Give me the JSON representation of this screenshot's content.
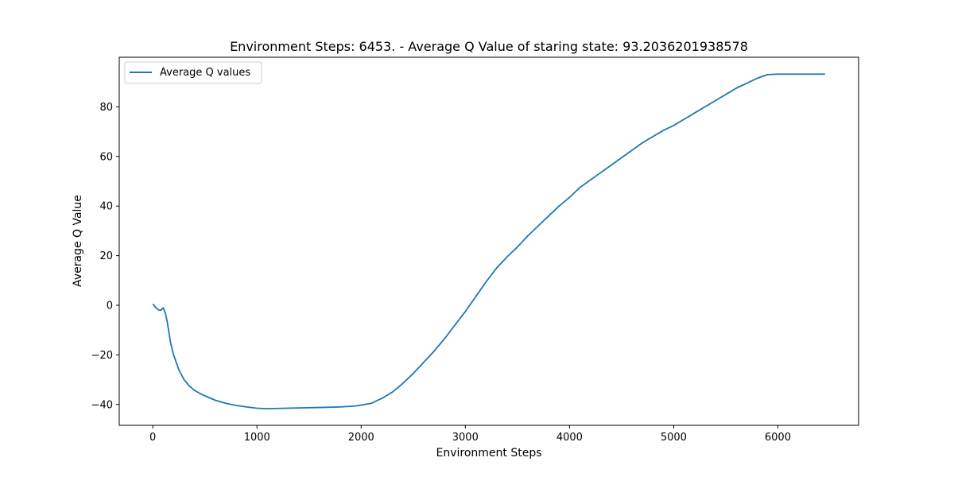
{
  "chart_data": {
    "type": "line",
    "title": "Environment Steps: 6453. - Average Q Value of staring state: 93.2036201938578",
    "xlabel": "Environment Steps",
    "ylabel": "Average Q Value",
    "xlim": [
      -322,
      6775
    ],
    "ylim": [
      -48.4,
      100.0
    ],
    "xticks": [
      0,
      1000,
      2000,
      3000,
      4000,
      5000,
      6000
    ],
    "yticks": [
      -40,
      -20,
      0,
      20,
      40,
      60,
      80
    ],
    "grid": false,
    "legend_position": "top-left",
    "series": [
      {
        "name": "Average Q values",
        "color": "#1f77b4",
        "x": [
          0,
          30,
          60,
          80,
          100,
          120,
          140,
          170,
          200,
          250,
          300,
          350,
          400,
          450,
          500,
          600,
          700,
          800,
          900,
          1000,
          1100,
          1200,
          1400,
          1600,
          1800,
          1950,
          2100,
          2200,
          2300,
          2400,
          2500,
          2600,
          2700,
          2800,
          2900,
          3000,
          3100,
          3200,
          3300,
          3400,
          3500,
          3600,
          3700,
          3800,
          3900,
          4000,
          4100,
          4200,
          4300,
          4400,
          4500,
          4600,
          4700,
          4800,
          4900,
          5000,
          5100,
          5200,
          5300,
          5400,
          5500,
          5600,
          5700,
          5800,
          5900,
          6000,
          6100,
          6200,
          6300,
          6400,
          6453
        ],
        "y": [
          0.5,
          -1.0,
          -2.0,
          -2.0,
          -1.0,
          -3.0,
          -7.0,
          -15.0,
          -20.0,
          -26.0,
          -30.0,
          -32.5,
          -34.3,
          -35.5,
          -36.5,
          -38.3,
          -39.5,
          -40.4,
          -41.0,
          -41.5,
          -41.7,
          -41.6,
          -41.4,
          -41.2,
          -41.0,
          -40.6,
          -39.5,
          -37.5,
          -35.0,
          -31.5,
          -27.5,
          -23.0,
          -18.5,
          -13.5,
          -8.0,
          -2.5,
          3.5,
          9.5,
          15.0,
          19.5,
          23.5,
          28.0,
          32.0,
          36.0,
          40.0,
          43.5,
          47.5,
          50.5,
          53.5,
          56.5,
          59.5,
          62.5,
          65.5,
          68.0,
          70.5,
          72.5,
          75.0,
          77.5,
          80.0,
          82.5,
          85.0,
          87.5,
          89.5,
          91.5,
          93.0,
          93.2,
          93.2,
          93.2,
          93.2,
          93.2,
          93.2
        ]
      }
    ]
  }
}
